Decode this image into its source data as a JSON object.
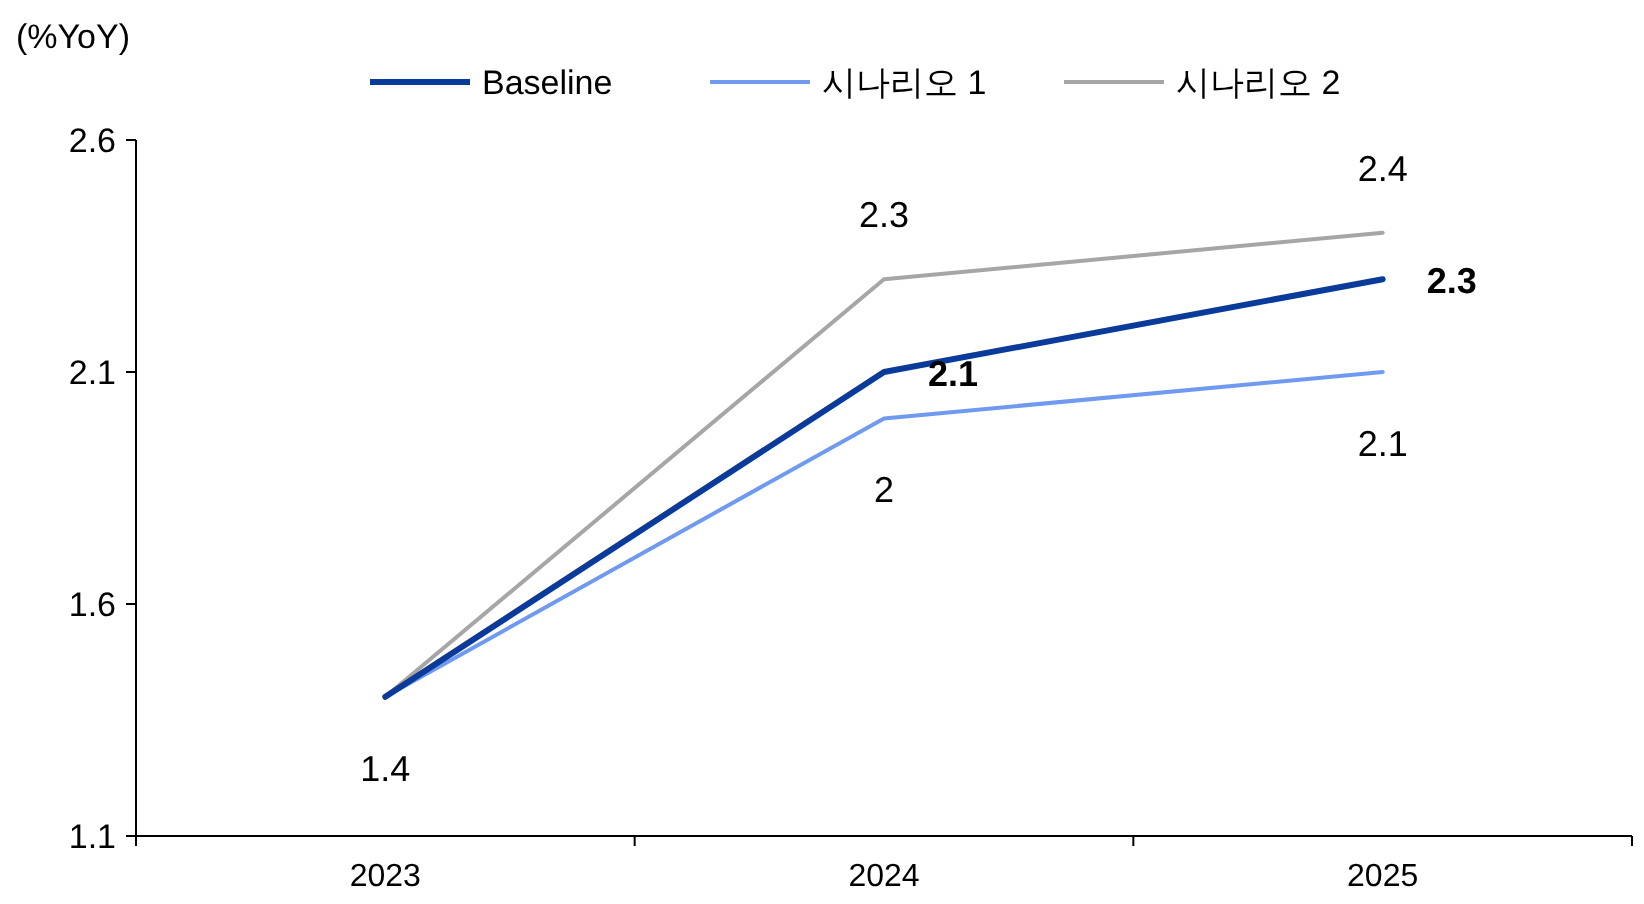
{
  "chart_data": {
    "type": "line",
    "ylabel": "(%YoY)",
    "categories": [
      "2023",
      "2024",
      "2025"
    ],
    "ylim": [
      1.1,
      2.6
    ],
    "yticks": [
      1.1,
      1.6,
      2.1,
      2.6
    ],
    "legend": "top",
    "series": [
      {
        "name": "Baseline",
        "color": "#0a3a9a",
        "values": [
          1.4,
          2.1,
          2.3
        ],
        "value_labels": [
          null,
          "2.1",
          "2.3"
        ]
      },
      {
        "name": "시나리오 1",
        "color": "#6f9af0",
        "values": [
          1.4,
          2.0,
          2.1
        ],
        "value_labels": [
          "1.4",
          "2",
          "2.1"
        ]
      },
      {
        "name": "시나리오 2",
        "color": "#a6a6a6",
        "values": [
          1.4,
          2.3,
          2.4
        ],
        "value_labels": [
          null,
          "2.3",
          "2.4"
        ]
      }
    ]
  }
}
